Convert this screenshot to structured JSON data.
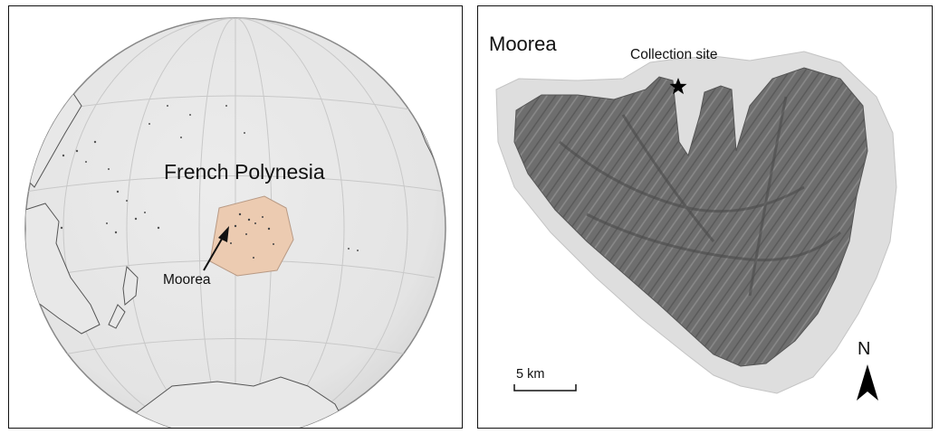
{
  "left_map": {
    "region_label": "French Polynesia",
    "pointer_label": "Moorea",
    "colors": {
      "ocean": "#e6e6e6",
      "region_fill": "#eccbb1",
      "land_outline": "#555555",
      "graticule": "#c8c8c8"
    }
  },
  "right_map": {
    "title": "Moorea",
    "site_label": "Collection site",
    "site_marker": "star-icon",
    "scale_label": "5 km",
    "north_label": "N",
    "north_icon": "north-arrow-icon",
    "colors": {
      "land": "#6e6e6e",
      "reef": "#dcdcdc"
    }
  }
}
